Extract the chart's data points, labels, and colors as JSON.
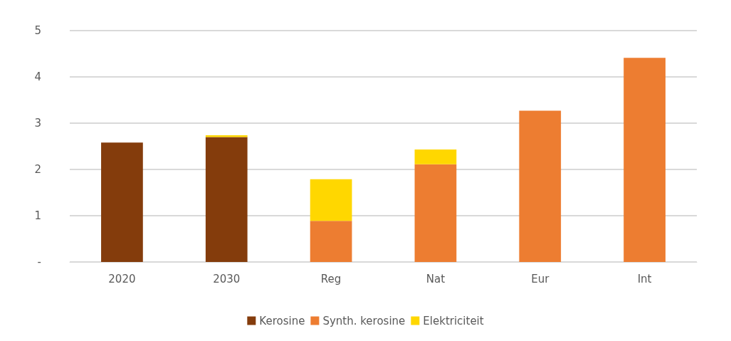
{
  "chart_data": {
    "type": "bar",
    "stacked": true,
    "categories": [
      "2020",
      "2030",
      "Reg",
      "Nat",
      "Eur",
      "Int"
    ],
    "series": [
      {
        "name": "Kerosine",
        "color": "#843c0c",
        "values": [
          2.58,
          2.7,
          null,
          null,
          null,
          null
        ]
      },
      {
        "name": "Synth. kerosine",
        "color": "#ed7d31",
        "values": [
          null,
          null,
          0.89,
          2.11,
          3.27,
          4.41
        ]
      },
      {
        "name": "Elektriciteit",
        "color": "#ffd700",
        "values": [
          null,
          0.04,
          0.9,
          0.32,
          null,
          null
        ]
      }
    ],
    "ylim": [
      0,
      5
    ],
    "yticks": [
      {
        "value": 0,
        "label": "-"
      },
      1,
      2,
      3,
      4,
      5
    ],
    "grid": "y",
    "legend": "bottom"
  }
}
